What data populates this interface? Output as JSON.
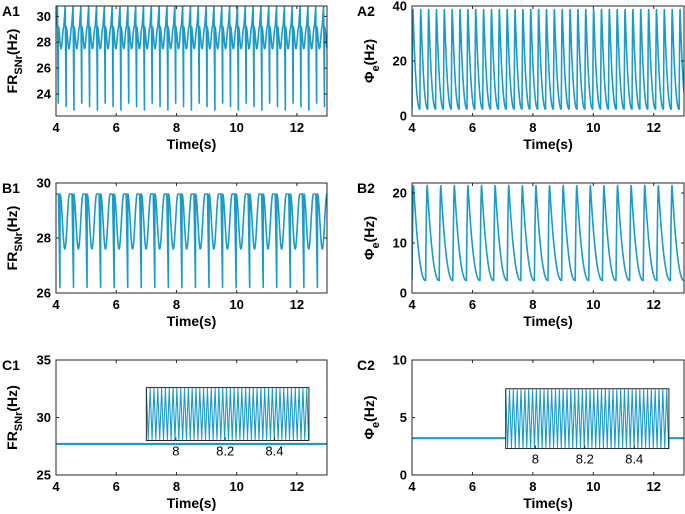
{
  "figure": {
    "trace_color": "#1a9bc9"
  },
  "chart_data": [
    {
      "id": "A1",
      "type": "line",
      "panel_label": "A1",
      "xlabel": "Time(s)",
      "ylabel_main": "FR",
      "ylabel_sub": "SNr",
      "ylabel_unit": "(Hz)",
      "xlim": [
        4,
        13
      ],
      "ylim": [
        22.3,
        30.8
      ],
      "xticks": [
        4,
        6,
        8,
        10,
        12
      ],
      "xtick_labels": [
        "4",
        "6",
        "8",
        "10",
        "12"
      ],
      "yticks": [
        24,
        26,
        28,
        30
      ],
      "ytick_labels": [
        "24",
        "26",
        "28",
        "30"
      ],
      "series": [
        {
          "name": "FR_SNr",
          "kind": "oscillation",
          "period": 0.26,
          "min": 22.5,
          "max": 30.8,
          "mid_band": [
            27.5,
            29.2
          ]
        }
      ]
    },
    {
      "id": "A2",
      "type": "line",
      "panel_label": "A2",
      "xlabel": "Time(s)",
      "ylabel_main": "Φ",
      "ylabel_sub": "e",
      "ylabel_unit": "(Hz)",
      "xlim": [
        4,
        13
      ],
      "ylim": [
        0,
        40
      ],
      "xticks": [
        4,
        6,
        8,
        10,
        12
      ],
      "xtick_labels": [
        "4",
        "6",
        "8",
        "10",
        "12"
      ],
      "yticks": [
        0,
        20,
        40
      ],
      "ytick_labels": [
        "0",
        "20",
        "40"
      ],
      "series": [
        {
          "name": "Phi_e",
          "kind": "spikes",
          "period": 0.26,
          "min": 2.5,
          "max": 39
        }
      ]
    },
    {
      "id": "B1",
      "type": "line",
      "panel_label": "B1",
      "xlabel": "Time(s)",
      "ylabel_main": "FR",
      "ylabel_sub": "SNr",
      "ylabel_unit": "(Hz)",
      "xlim": [
        4,
        13
      ],
      "ylim": [
        26,
        30
      ],
      "xticks": [
        4,
        6,
        8,
        10,
        12
      ],
      "xtick_labels": [
        "4",
        "6",
        "8",
        "10",
        "12"
      ],
      "yticks": [
        26,
        28,
        30
      ],
      "ytick_labels": [
        "26",
        "28",
        "30"
      ],
      "series": [
        {
          "name": "FR_SNr",
          "kind": "oscillation",
          "period": 0.45,
          "min": 26.0,
          "max": 29.6,
          "mid_band": [
            27.6,
            29.6
          ]
        }
      ]
    },
    {
      "id": "B2",
      "type": "line",
      "panel_label": "B2",
      "xlabel": "Time(s)",
      "ylabel_main": "Φ",
      "ylabel_sub": "e",
      "ylabel_unit": "(Hz)",
      "xlim": [
        4,
        13
      ],
      "ylim": [
        0,
        22
      ],
      "xticks": [
        4,
        6,
        8,
        10,
        12
      ],
      "xtick_labels": [
        "4",
        "6",
        "8",
        "10",
        "12"
      ],
      "yticks": [
        0,
        10,
        20
      ],
      "ytick_labels": [
        "0",
        "10",
        "20"
      ],
      "series": [
        {
          "name": "Phi_e",
          "kind": "spikes",
          "period": 0.45,
          "min": 2.5,
          "max": 21.5
        }
      ]
    },
    {
      "id": "C1",
      "type": "line",
      "panel_label": "C1",
      "xlabel": "Time(s)",
      "ylabel_main": "FR",
      "ylabel_sub": "SNr",
      "ylabel_unit": "(Hz)",
      "xlim": [
        4,
        13
      ],
      "ylim": [
        25,
        35
      ],
      "xticks": [
        4,
        6,
        8,
        10,
        12
      ],
      "xtick_labels": [
        "4",
        "6",
        "8",
        "10",
        "12"
      ],
      "yticks": [
        25,
        30,
        35
      ],
      "ytick_labels": [
        "25",
        "30",
        "35"
      ],
      "series": [
        {
          "name": "FR_SNr",
          "kind": "flat",
          "value": 27.7
        }
      ],
      "inset": {
        "xlim": [
          7.88,
          8.54
        ],
        "xticks": [
          8,
          8.2,
          8.4
        ],
        "xtick_labels": [
          "8",
          "8.2",
          "8.4"
        ],
        "period": 0.0155,
        "plot_x": [
          7.0,
          12.4
        ],
        "plot_y": [
          28.0,
          32.6
        ]
      }
    },
    {
      "id": "C2",
      "type": "line",
      "panel_label": "C2",
      "xlabel": "Time(s)",
      "ylabel_main": "Φ",
      "ylabel_sub": "e",
      "ylabel_unit": "(Hz)",
      "xlim": [
        4,
        13
      ],
      "ylim": [
        0,
        10
      ],
      "xticks": [
        4,
        6,
        8,
        10,
        12
      ],
      "xtick_labels": [
        "4",
        "6",
        "8",
        "10",
        "12"
      ],
      "yticks": [
        0,
        5,
        10
      ],
      "ytick_labels": [
        "0",
        "5",
        "10"
      ],
      "series": [
        {
          "name": "Phi_e",
          "kind": "flat",
          "value": 3.2
        }
      ],
      "inset": {
        "xlim": [
          7.88,
          8.54
        ],
        "xticks": [
          8,
          8.2,
          8.4
        ],
        "xtick_labels": [
          "8",
          "8.2",
          "8.4"
        ],
        "period": 0.0155,
        "plot_x": [
          7.1,
          12.5
        ],
        "plot_y": [
          2.3,
          7.5
        ]
      }
    }
  ]
}
